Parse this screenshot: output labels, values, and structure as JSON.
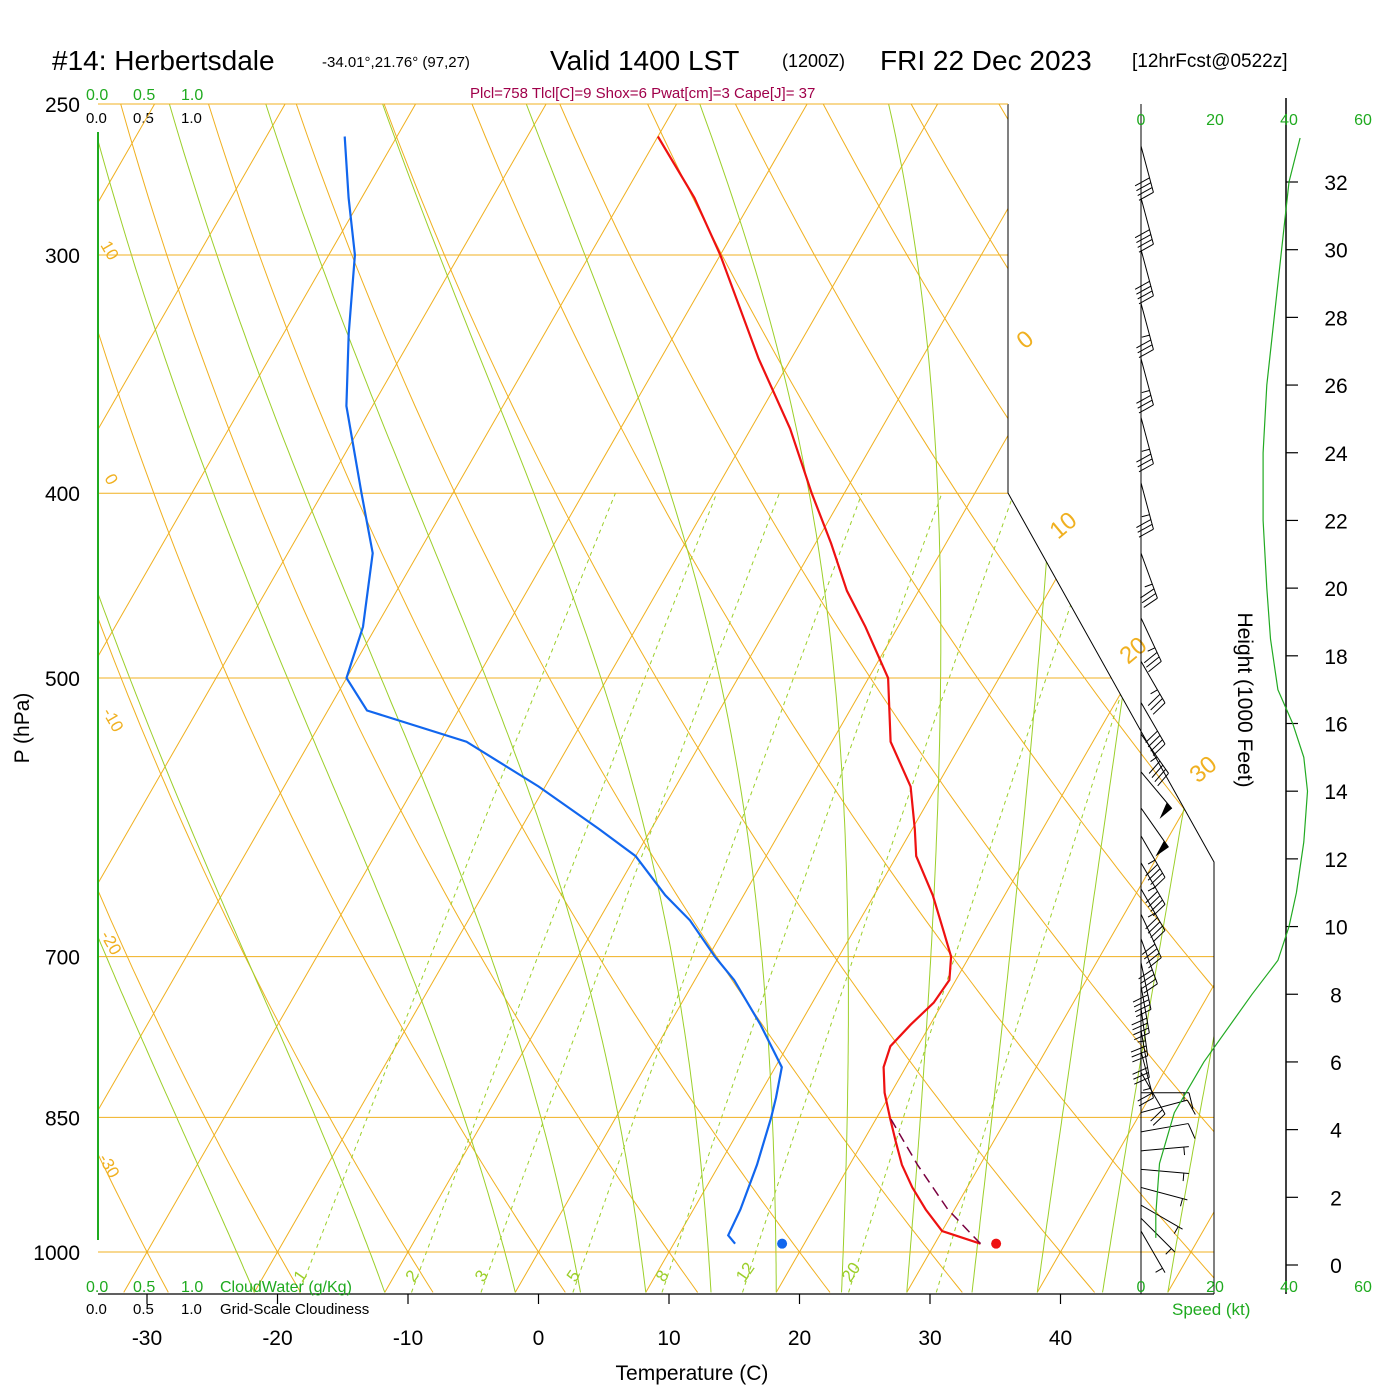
{
  "header": {
    "station": "#14: Herbertsdale",
    "coords": "-34.01°,21.76° (97,27)",
    "valid": "Valid 1400 LST",
    "utc": "(1200Z)",
    "date": "FRI 22 Dec 2023",
    "forecast": "[12hrFcst@0522z]"
  },
  "info_line": "Plcl=758 Tlcl[C]=9 Shox=6 Pwat[cm]=3 Cape[J]= 37",
  "top_scales": {
    "cloudwater_ticks": [
      "0.0",
      "0.5",
      "1.0"
    ],
    "cloudiness_ticks": [
      "0.0",
      "0.5",
      "1.0"
    ]
  },
  "bottom_scales": {
    "cloudwater_ticks": [
      "0.0",
      "0.5",
      "1.0"
    ],
    "cloudwater_label": "CloudWater (g/Kg)",
    "cloudiness_ticks": [
      "0.0",
      "0.5",
      "1.0"
    ],
    "cloudiness_label": "Grid-Scale Cloudiness"
  },
  "wind_speed_axis": {
    "ticks_top": [
      "0",
      "20",
      "40",
      "60"
    ],
    "ticks_bottom": [
      "0",
      "20",
      "40",
      "60"
    ],
    "label": "Speed (kt)"
  },
  "height_axis": {
    "label": "Height (1000 Feet)",
    "ticks": [
      "0",
      "2",
      "4",
      "6",
      "8",
      "10",
      "12",
      "14",
      "16",
      "18",
      "20",
      "22",
      "24",
      "26",
      "28",
      "30",
      "32"
    ]
  },
  "colors": {
    "temperature": "#ee1111",
    "dewpoint": "#1166ee",
    "isotherm": "#f0b020",
    "dry_adiabat": "#f0b020",
    "moist_adiabat": "#9ccf2a",
    "mixing_ratio": "#9ccf2a",
    "parcel": "#7a0040",
    "wind_speed": "#22aa22",
    "axis_green": "#1faa1f"
  },
  "chart_data": {
    "type": "line",
    "subtype": "skew-T log-P sounding",
    "xlabel": "Temperature (C)",
    "ylabel": "P (hPa)",
    "x_ticks": [
      "-30",
      "-20",
      "-10",
      "0",
      "10",
      "20",
      "30",
      "40"
    ],
    "y_ticks": [
      "250",
      "300",
      "400",
      "500",
      "700",
      "850",
      "1000"
    ],
    "y_scale": "log",
    "ylim": [
      1050,
      250
    ],
    "xlim_bottom": [
      -33,
      47
    ],
    "isotherm_labels": [
      "-30",
      "-20",
      "-10",
      "0",
      "10",
      "20",
      "30"
    ],
    "potential_temp_labels": [
      "10",
      "0",
      "-10",
      "-20",
      "-30"
    ],
    "mixing_ratio_labels": [
      "1",
      "2",
      "3",
      "5",
      "8",
      "12",
      "20"
    ],
    "series": [
      {
        "points": [
          {
            "p": 990,
            "t": 33.5
          },
          {
            "p": 975,
            "t": 30.0
          },
          {
            "p": 950,
            "t": 27.8
          },
          {
            "p": 925,
            "t": 25.8
          },
          {
            "p": 900,
            "t": 24.0
          },
          {
            "p": 875,
            "t": 22.5
          },
          {
            "p": 850,
            "t": 21.0
          },
          {
            "p": 825,
            "t": 19.5
          },
          {
            "p": 800,
            "t": 18.3
          },
          {
            "p": 780,
            "t": 17.9
          },
          {
            "p": 760,
            "t": 18.5
          },
          {
            "p": 740,
            "t": 19.3
          },
          {
            "p": 720,
            "t": 19.5
          },
          {
            "p": 700,
            "t": 18.6
          },
          {
            "p": 680,
            "t": 17.0
          },
          {
            "p": 650,
            "t": 14.5
          },
          {
            "p": 620,
            "t": 11.5
          },
          {
            "p": 600,
            "t": 10.2
          },
          {
            "p": 570,
            "t": 8.0
          },
          {
            "p": 540,
            "t": 4.5
          },
          {
            "p": 500,
            "t": 1.5
          },
          {
            "p": 470,
            "t": -2.5
          },
          {
            "p": 450,
            "t": -5.5
          },
          {
            "p": 425,
            "t": -8.8
          },
          {
            "p": 400,
            "t": -12.5
          },
          {
            "p": 370,
            "t": -17.0
          },
          {
            "p": 340,
            "t": -22.5
          },
          {
            "p": 300,
            "t": -30.0
          },
          {
            "p": 280,
            "t": -34.5
          },
          {
            "p": 260,
            "t": -40.0
          }
        ]
      },
      {
        "points": [
          {
            "p": 990,
            "t": 14.7
          },
          {
            "p": 980,
            "t": 13.8
          },
          {
            "p": 950,
            "t": 13.6
          },
          {
            "p": 900,
            "t": 12.9
          },
          {
            "p": 850,
            "t": 11.9
          },
          {
            "p": 830,
            "t": 11.4
          },
          {
            "p": 800,
            "t": 10.5
          },
          {
            "p": 760,
            "t": 7.0
          },
          {
            "p": 720,
            "t": 3.0
          },
          {
            "p": 700,
            "t": 0.5
          },
          {
            "p": 670,
            "t": -3.0
          },
          {
            "p": 650,
            "t": -6.0
          },
          {
            "p": 620,
            "t": -10.0
          },
          {
            "p": 600,
            "t": -14.0
          },
          {
            "p": 570,
            "t": -20.5
          },
          {
            "p": 540,
            "t": -28.0
          },
          {
            "p": 520,
            "t": -37.0
          },
          {
            "p": 500,
            "t": -40.0
          },
          {
            "p": 470,
            "t": -41.0
          },
          {
            "p": 430,
            "t": -43.5
          },
          {
            "p": 400,
            "t": -47.0
          },
          {
            "p": 360,
            "t": -52.0
          },
          {
            "p": 330,
            "t": -55.0
          },
          {
            "p": 300,
            "t": -58.0
          },
          {
            "p": 280,
            "t": -61.0
          },
          {
            "p": 260,
            "t": -64.0
          }
        ]
      },
      {
        "style": "dashed",
        "points": [
          {
            "p": 990,
            "t": 33.5
          },
          {
            "p": 950,
            "t": 29.5
          },
          {
            "p": 900,
            "t": 25.2
          },
          {
            "p": 850,
            "t": 21.0
          }
        ]
      }
    ],
    "surface_markers": [
      {
        "p": 990,
        "t": 34.7
      },
      {
        "p": 990,
        "t": 18.3
      }
    ],
    "wind_speed_profile": [
      {
        "h_kft": 0.8,
        "kt": 4
      },
      {
        "h_kft": 1.5,
        "kt": 4
      },
      {
        "h_kft": 3.0,
        "kt": 5
      },
      {
        "h_kft": 4.5,
        "kt": 9
      },
      {
        "h_kft": 6.0,
        "kt": 17
      },
      {
        "h_kft": 8.0,
        "kt": 30
      },
      {
        "h_kft": 9.0,
        "kt": 37
      },
      {
        "h_kft": 10.0,
        "kt": 40
      },
      {
        "h_kft": 11.0,
        "kt": 42
      },
      {
        "h_kft": 12.5,
        "kt": 44
      },
      {
        "h_kft": 14.0,
        "kt": 45
      },
      {
        "h_kft": 15.0,
        "kt": 44
      },
      {
        "h_kft": 16.0,
        "kt": 41
      },
      {
        "h_kft": 17.0,
        "kt": 37
      },
      {
        "h_kft": 18.5,
        "kt": 35
      },
      {
        "h_kft": 20.0,
        "kt": 34
      },
      {
        "h_kft": 22.0,
        "kt": 33
      },
      {
        "h_kft": 24.0,
        "kt": 33
      },
      {
        "h_kft": 26.0,
        "kt": 34
      },
      {
        "h_kft": 28.0,
        "kt": 36
      },
      {
        "h_kft": 30.0,
        "kt": 38
      },
      {
        "h_kft": 31.0,
        "kt": 39
      },
      {
        "h_kft": 32.0,
        "kt": 40
      },
      {
        "h_kft": 33.3,
        "kt": 43
      }
    ],
    "wind_barbs": [
      {
        "p": 975,
        "dir": 150,
        "kt": 5
      },
      {
        "p": 960,
        "dir": 135,
        "kt": 5
      },
      {
        "p": 945,
        "dir": 120,
        "kt": 5
      },
      {
        "p": 925,
        "dir": 105,
        "kt": 5
      },
      {
        "p": 905,
        "dir": 95,
        "kt": 5
      },
      {
        "p": 885,
        "dir": 85,
        "kt": 5
      },
      {
        "p": 865,
        "dir": 80,
        "kt": 10
      },
      {
        "p": 845,
        "dir": 75,
        "kt": 10
      },
      {
        "p": 825,
        "dir": 90,
        "kt": 15
      },
      {
        "p": 805,
        "dir": 150,
        "kt": 20
      },
      {
        "p": 785,
        "dir": 165,
        "kt": 25
      },
      {
        "p": 765,
        "dir": 170,
        "kt": 30
      },
      {
        "p": 745,
        "dir": 172,
        "kt": 35
      },
      {
        "p": 725,
        "dir": 170,
        "kt": 40
      },
      {
        "p": 705,
        "dir": 168,
        "kt": 40
      },
      {
        "p": 685,
        "dir": 160,
        "kt": 40
      },
      {
        "p": 665,
        "dir": 155,
        "kt": 40
      },
      {
        "p": 645,
        "dir": 150,
        "kt": 45
      },
      {
        "p": 625,
        "dir": 150,
        "kt": 45
      },
      {
        "p": 605,
        "dir": 150,
        "kt": 45
      },
      {
        "p": 585,
        "dir": 145,
        "kt": 50
      },
      {
        "p": 560,
        "dir": 140,
        "kt": 50
      },
      {
        "p": 535,
        "dir": 145,
        "kt": 45
      },
      {
        "p": 515,
        "dir": 150,
        "kt": 40
      },
      {
        "p": 490,
        "dir": 150,
        "kt": 35
      },
      {
        "p": 465,
        "dir": 155,
        "kt": 35
      },
      {
        "p": 430,
        "dir": 160,
        "kt": 35
      },
      {
        "p": 395,
        "dir": 165,
        "kt": 35
      },
      {
        "p": 365,
        "dir": 165,
        "kt": 35
      },
      {
        "p": 340,
        "dir": 165,
        "kt": 35
      },
      {
        "p": 318,
        "dir": 165,
        "kt": 35
      },
      {
        "p": 298,
        "dir": 165,
        "kt": 40
      },
      {
        "p": 280,
        "dir": 165,
        "kt": 40
      },
      {
        "p": 263,
        "dir": 165,
        "kt": 40
      }
    ]
  }
}
